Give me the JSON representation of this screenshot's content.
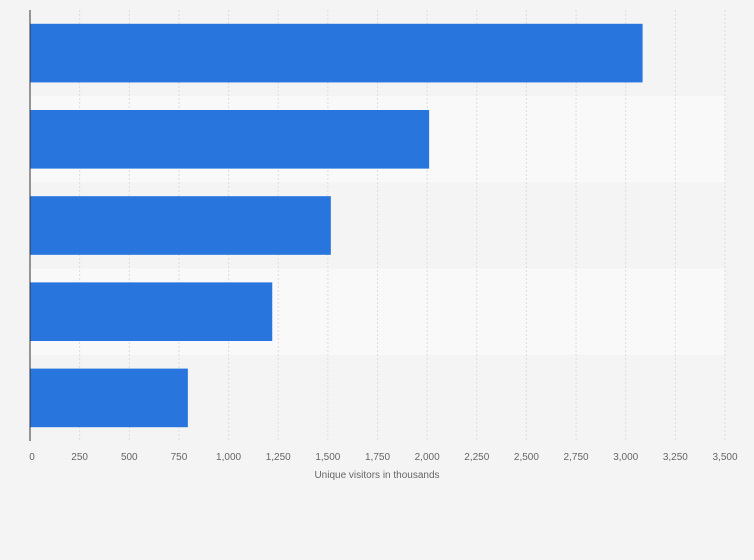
{
  "chart_data": {
    "type": "bar",
    "orientation": "horizontal",
    "categories": [
      "",
      "",
      "",
      "",
      ""
    ],
    "values": [
      3085,
      2010,
      1515,
      1220,
      795
    ],
    "xlabel": "Unique visitors in thousands",
    "ylabel": "",
    "xlim": [
      0,
      3500
    ],
    "ticks": [
      0,
      250,
      500,
      750,
      1000,
      1250,
      1500,
      1750,
      2000,
      2250,
      2500,
      2750,
      3000,
      3250,
      3500
    ],
    "tick_labels": [
      "0",
      "250",
      "500",
      "750",
      "1,000",
      "1,250",
      "1,500",
      "1,750",
      "2,000",
      "2,250",
      "2,500",
      "2,750",
      "3,000",
      "3,250",
      "3,500"
    ],
    "grid": true,
    "colors": {
      "bar": "#2876dd",
      "band_light": "#f9f9f9",
      "band_dark": "#f4f4f4",
      "grid": "#dddddd",
      "axis": "#333333"
    }
  }
}
